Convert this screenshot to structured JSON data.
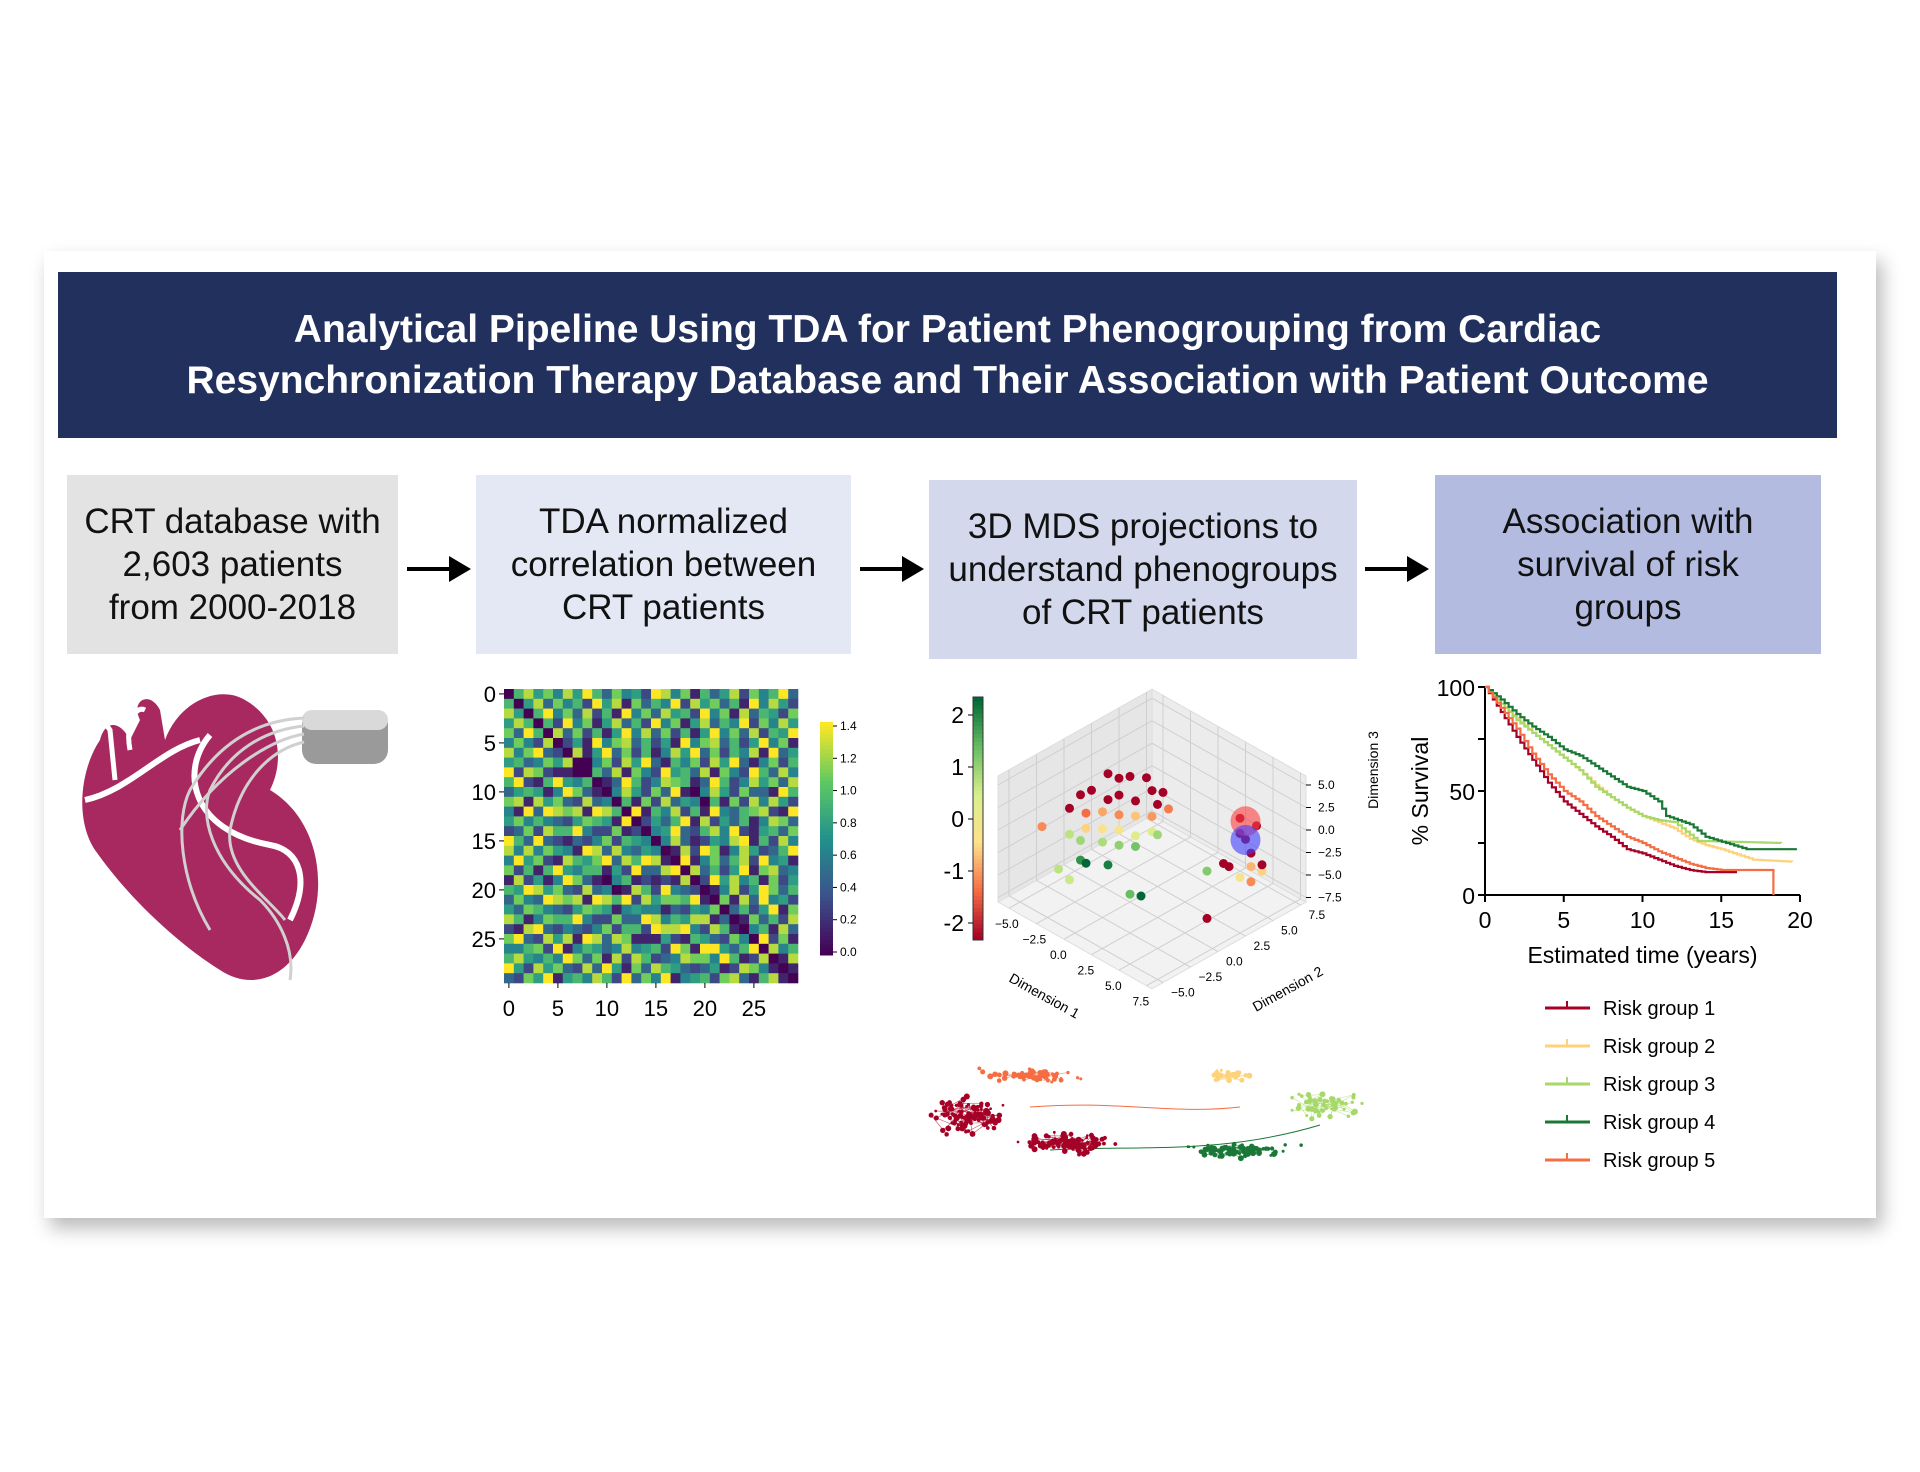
{
  "title": {
    "line1": "Analytical Pipeline Using TDA for Patient Phenogrouping from Cardiac",
    "line2": "Resynchronization Therapy Database and Their Association with Patient Outcome"
  },
  "steps": [
    {
      "lines": [
        "CRT database with",
        "2,603 patients",
        "from 2000-2018"
      ],
      "color": "#e3e3e3"
    },
    {
      "lines": [
        "TDA normalized",
        "correlation between",
        "CRT patients"
      ],
      "color": "#e4e8f4"
    },
    {
      "lines": [
        "3D MDS projections to",
        "understand phenogroups",
        "of CRT patients"
      ],
      "color": "#d3d8ec"
    },
    {
      "lines": [
        "Association with",
        "survival of risk",
        "groups"
      ],
      "color": "#b3bce0"
    }
  ],
  "colors": {
    "banner": "#22305e",
    "heart": "#a8295f",
    "device": "#9a9a9a"
  },
  "chart_data": [
    {
      "type": "heatmap",
      "xticks": [
        "0",
        "5",
        "10",
        "15",
        "20",
        "25"
      ],
      "yticks": [
        "0",
        "5",
        "10",
        "15",
        "20",
        "25"
      ],
      "colorbar_ticks": [
        "0.0",
        "0.2",
        "0.4",
        "0.6",
        "0.8",
        "1.0",
        "1.2",
        "1.4"
      ],
      "range": [
        0,
        1.4
      ],
      "rows": [
        "068574859637452984716358274693",
        "605837462958173649285736194852",
        "850694738261947385629471836527",
        "583062947158362947158364927485",
        "749608372615948372615947382659",
        "437860251947836251947836259471",
        "864372081593726148593726481935",
        "562925810472859316472859314726",
        "931417950638174295638174296384",
        "685583446013962487613962485738",
        "372216973104852739104852733196",
        "419997189540617283540617284852",
        "574434547860391648261943678219",
        "283652913239022536918253614873",
        "946278485826210459326849215637",
        "751934262193902748312548916284",
        "128463579446748031829714852369",
        "693815642985125302914736829451",
        "417259463112376930483625917834",
        "864327592863854847032958461725",
        "239658193416285492306148259736",
        "596174285647341968460271839452",
        "381942617938962153721083625917",
        "748516829374198672598405173628",
        "615283947162715849362850946183",
        "427638594831476528196474059271",
        "854197362418638194725353905846",
        "192746831594217936481629450318",
        "367819425783594276184371283041",
        "529461738269841357926514739810"
      ]
    },
    {
      "type": "scatter",
      "subtype": "3d",
      "xlabel": "Dimension 1",
      "ylabel": "Dimension 2",
      "zlabel": "Dimension 3",
      "xticks": [
        "−5.0",
        "−2.5",
        "0.0",
        "2.5",
        "5.0",
        "7.5"
      ],
      "yticks": [
        "−5.0",
        "−2.5",
        "0.0",
        "2.5",
        "5.0",
        "7.5"
      ],
      "zticks": [
        "5.0",
        "2.5",
        "0.0",
        "−2.5",
        "−5.0",
        "−7.5"
      ],
      "colorbar_ticks": [
        "2",
        "1",
        "0",
        "-1",
        "-2"
      ],
      "colorbar_range": [
        -2,
        2
      ],
      "points": [
        [
          -3,
          1,
          3.5,
          -2
        ],
        [
          -2.5,
          1.5,
          3,
          -2
        ],
        [
          -2,
          2,
          3.2,
          -2
        ],
        [
          -1,
          2.5,
          3.4,
          -2
        ],
        [
          0,
          2,
          3,
          -2
        ],
        [
          0.5,
          2.5,
          2.8,
          -2
        ],
        [
          -1.5,
          0.5,
          2.5,
          -2
        ],
        [
          -3.5,
          0,
          2,
          -2
        ],
        [
          -4,
          -0.5,
          1.5,
          -2
        ],
        [
          -2,
          0,
          2,
          -2
        ],
        [
          -0.5,
          1,
          2.2,
          -2
        ],
        [
          1,
          1.5,
          2.5,
          -2
        ],
        [
          -4.5,
          -1,
          0,
          -2
        ],
        [
          -3,
          -1,
          0.5,
          -1.2
        ],
        [
          -2,
          -0.5,
          1,
          -0.8
        ],
        [
          -1,
          0,
          1,
          -1
        ],
        [
          0,
          0.5,
          1.2,
          -0.6
        ],
        [
          1,
          1,
          1.5,
          -0.9
        ],
        [
          1.5,
          2,
          2,
          -1.1
        ],
        [
          -2.5,
          -1.5,
          -0.5,
          -0.5
        ],
        [
          -1.5,
          -1,
          -0.2,
          -0.3
        ],
        [
          -0.5,
          -0.5,
          0,
          -0.2
        ],
        [
          0.5,
          0,
          -0.3,
          0.2
        ],
        [
          1.5,
          0.5,
          0.5,
          0.4
        ],
        [
          -3.5,
          -2,
          -1.5,
          0.6
        ],
        [
          -2.5,
          -2,
          -1.5,
          0.8
        ],
        [
          -1,
          -1.5,
          -1,
          0.7
        ],
        [
          0,
          -1,
          -1,
          0.9
        ],
        [
          1,
          -0.5,
          -0.8,
          1.1
        ],
        [
          2,
          0.5,
          0.5,
          0.8
        ],
        [
          -2,
          -2.5,
          -3,
          1.6
        ],
        [
          -1.5,
          -2.5,
          -3,
          2.1
        ],
        [
          0,
          -2,
          -2.5,
          1.8
        ],
        [
          -5,
          -3,
          -1,
          -1
        ],
        [
          -3,
          -3.5,
          -4,
          0.6
        ],
        [
          -2,
          -3.5,
          -4.5,
          0.5
        ],
        [
          3,
          -3,
          -3,
          1.2
        ],
        [
          3.5,
          -2.5,
          -3.2,
          2
        ],
        [
          5,
          2,
          -2.5,
          1
        ],
        [
          6,
          4,
          1,
          -2
        ],
        [
          5.5,
          4.5,
          2,
          -2
        ],
        [
          6.5,
          5,
          1.5,
          -2
        ],
        [
          6,
          4.5,
          0,
          -2
        ],
        [
          7,
          4,
          -0.5,
          -2
        ],
        [
          5.5,
          3,
          -2,
          -2
        ],
        [
          6,
          3,
          -2,
          -2
        ],
        [
          7,
          4,
          -2,
          -0.7
        ],
        [
          7.5,
          4.5,
          -1.8,
          -2
        ],
        [
          7,
          5,
          -3.2,
          -0.5
        ],
        [
          6.5,
          3.5,
          -3.2,
          -0.2
        ],
        [
          7.5,
          3.5,
          -3,
          -1
        ],
        [
          7,
          0,
          -5,
          -2
        ]
      ],
      "spheres": [
        {
          "center": [
            6,
            4.5,
            2
          ],
          "color": "#ff4040"
        },
        {
          "center": [
            6.2,
            4.3,
            0.2
          ],
          "color": "#4040ff"
        }
      ]
    },
    {
      "type": "scatter",
      "subtype": "network",
      "clusters": [
        {
          "color": "#f46d43",
          "cx": -0.55,
          "cy": -0.55,
          "sx": 0.25,
          "sy": 0.12,
          "n": 60
        },
        {
          "color": "#a50026",
          "cx": -0.8,
          "cy": 0.05,
          "sx": 0.18,
          "sy": 0.35,
          "n": 110
        },
        {
          "color": "#a50026",
          "cx": -0.4,
          "cy": 0.45,
          "sx": 0.25,
          "sy": 0.2,
          "n": 110
        },
        {
          "color": "#fdd27a",
          "cx": 0.25,
          "cy": -0.55,
          "sx": 0.12,
          "sy": 0.12,
          "n": 30
        },
        {
          "color": "#a6d96a",
          "cx": 0.65,
          "cy": -0.1,
          "sx": 0.2,
          "sy": 0.25,
          "n": 60
        },
        {
          "color": "#1a7837",
          "cx": 0.3,
          "cy": 0.55,
          "sx": 0.28,
          "sy": 0.15,
          "n": 80
        }
      ]
    },
    {
      "type": "line",
      "subtype": "kaplan-meier",
      "xlabel": "Estimated time (years)",
      "ylabel": "% Survival",
      "xlim": [
        0,
        20
      ],
      "ylim": [
        0,
        100
      ],
      "xticks": [
        "0",
        "5",
        "10",
        "15",
        "20"
      ],
      "yticks": [
        "0",
        "50",
        "100"
      ],
      "series": [
        {
          "name": "Risk group 1",
          "color": "#a50026",
          "x": [
            0,
            1,
            2,
            3,
            4,
            5,
            6,
            7,
            8,
            9,
            10,
            11,
            12,
            13,
            14,
            15,
            16
          ],
          "y": [
            100,
            88,
            76,
            65,
            54,
            45,
            39,
            33,
            28,
            22,
            20,
            17,
            14,
            12,
            11,
            11,
            11
          ]
        },
        {
          "name": "Risk group 2",
          "color": "#fdd27a",
          "x": [
            0,
            1,
            2,
            3,
            4,
            5,
            6,
            7,
            8,
            9,
            10,
            11,
            12,
            13,
            14,
            15,
            17,
            19.5
          ],
          "y": [
            100,
            92,
            85,
            78,
            72,
            66,
            60,
            53,
            47,
            42,
            38,
            35,
            32,
            27,
            24,
            22,
            17,
            16
          ]
        },
        {
          "name": "Risk group 3",
          "color": "#a6d96a",
          "x": [
            0,
            1,
            2,
            3,
            4,
            5,
            6,
            7,
            8,
            9,
            10,
            11,
            12,
            13.5,
            18.8
          ],
          "y": [
            100,
            92,
            84,
            78,
            72,
            66,
            60,
            52,
            47,
            42,
            38,
            36,
            35,
            26,
            25
          ]
        },
        {
          "name": "Risk group 4",
          "color": "#1a7837",
          "x": [
            0,
            1,
            2,
            3,
            4,
            5,
            6,
            7,
            8,
            9,
            10,
            11,
            11.5,
            13,
            14,
            16.6,
            19.8
          ],
          "y": [
            100,
            94,
            87,
            81,
            76,
            70,
            67,
            62,
            57,
            52,
            50,
            45,
            38,
            34,
            28,
            22,
            22
          ]
        },
        {
          "name": "Risk group 5",
          "color": "#f46d43",
          "x": [
            0,
            1,
            2,
            3,
            4,
            5,
            6,
            7,
            8,
            9,
            10,
            11,
            12,
            13,
            14,
            15,
            18.3,
            18.31
          ],
          "y": [
            100,
            90,
            80,
            68,
            58,
            50,
            45,
            38,
            33,
            28,
            25,
            21,
            18,
            15,
            13,
            12,
            12,
            0
          ]
        }
      ]
    }
  ]
}
